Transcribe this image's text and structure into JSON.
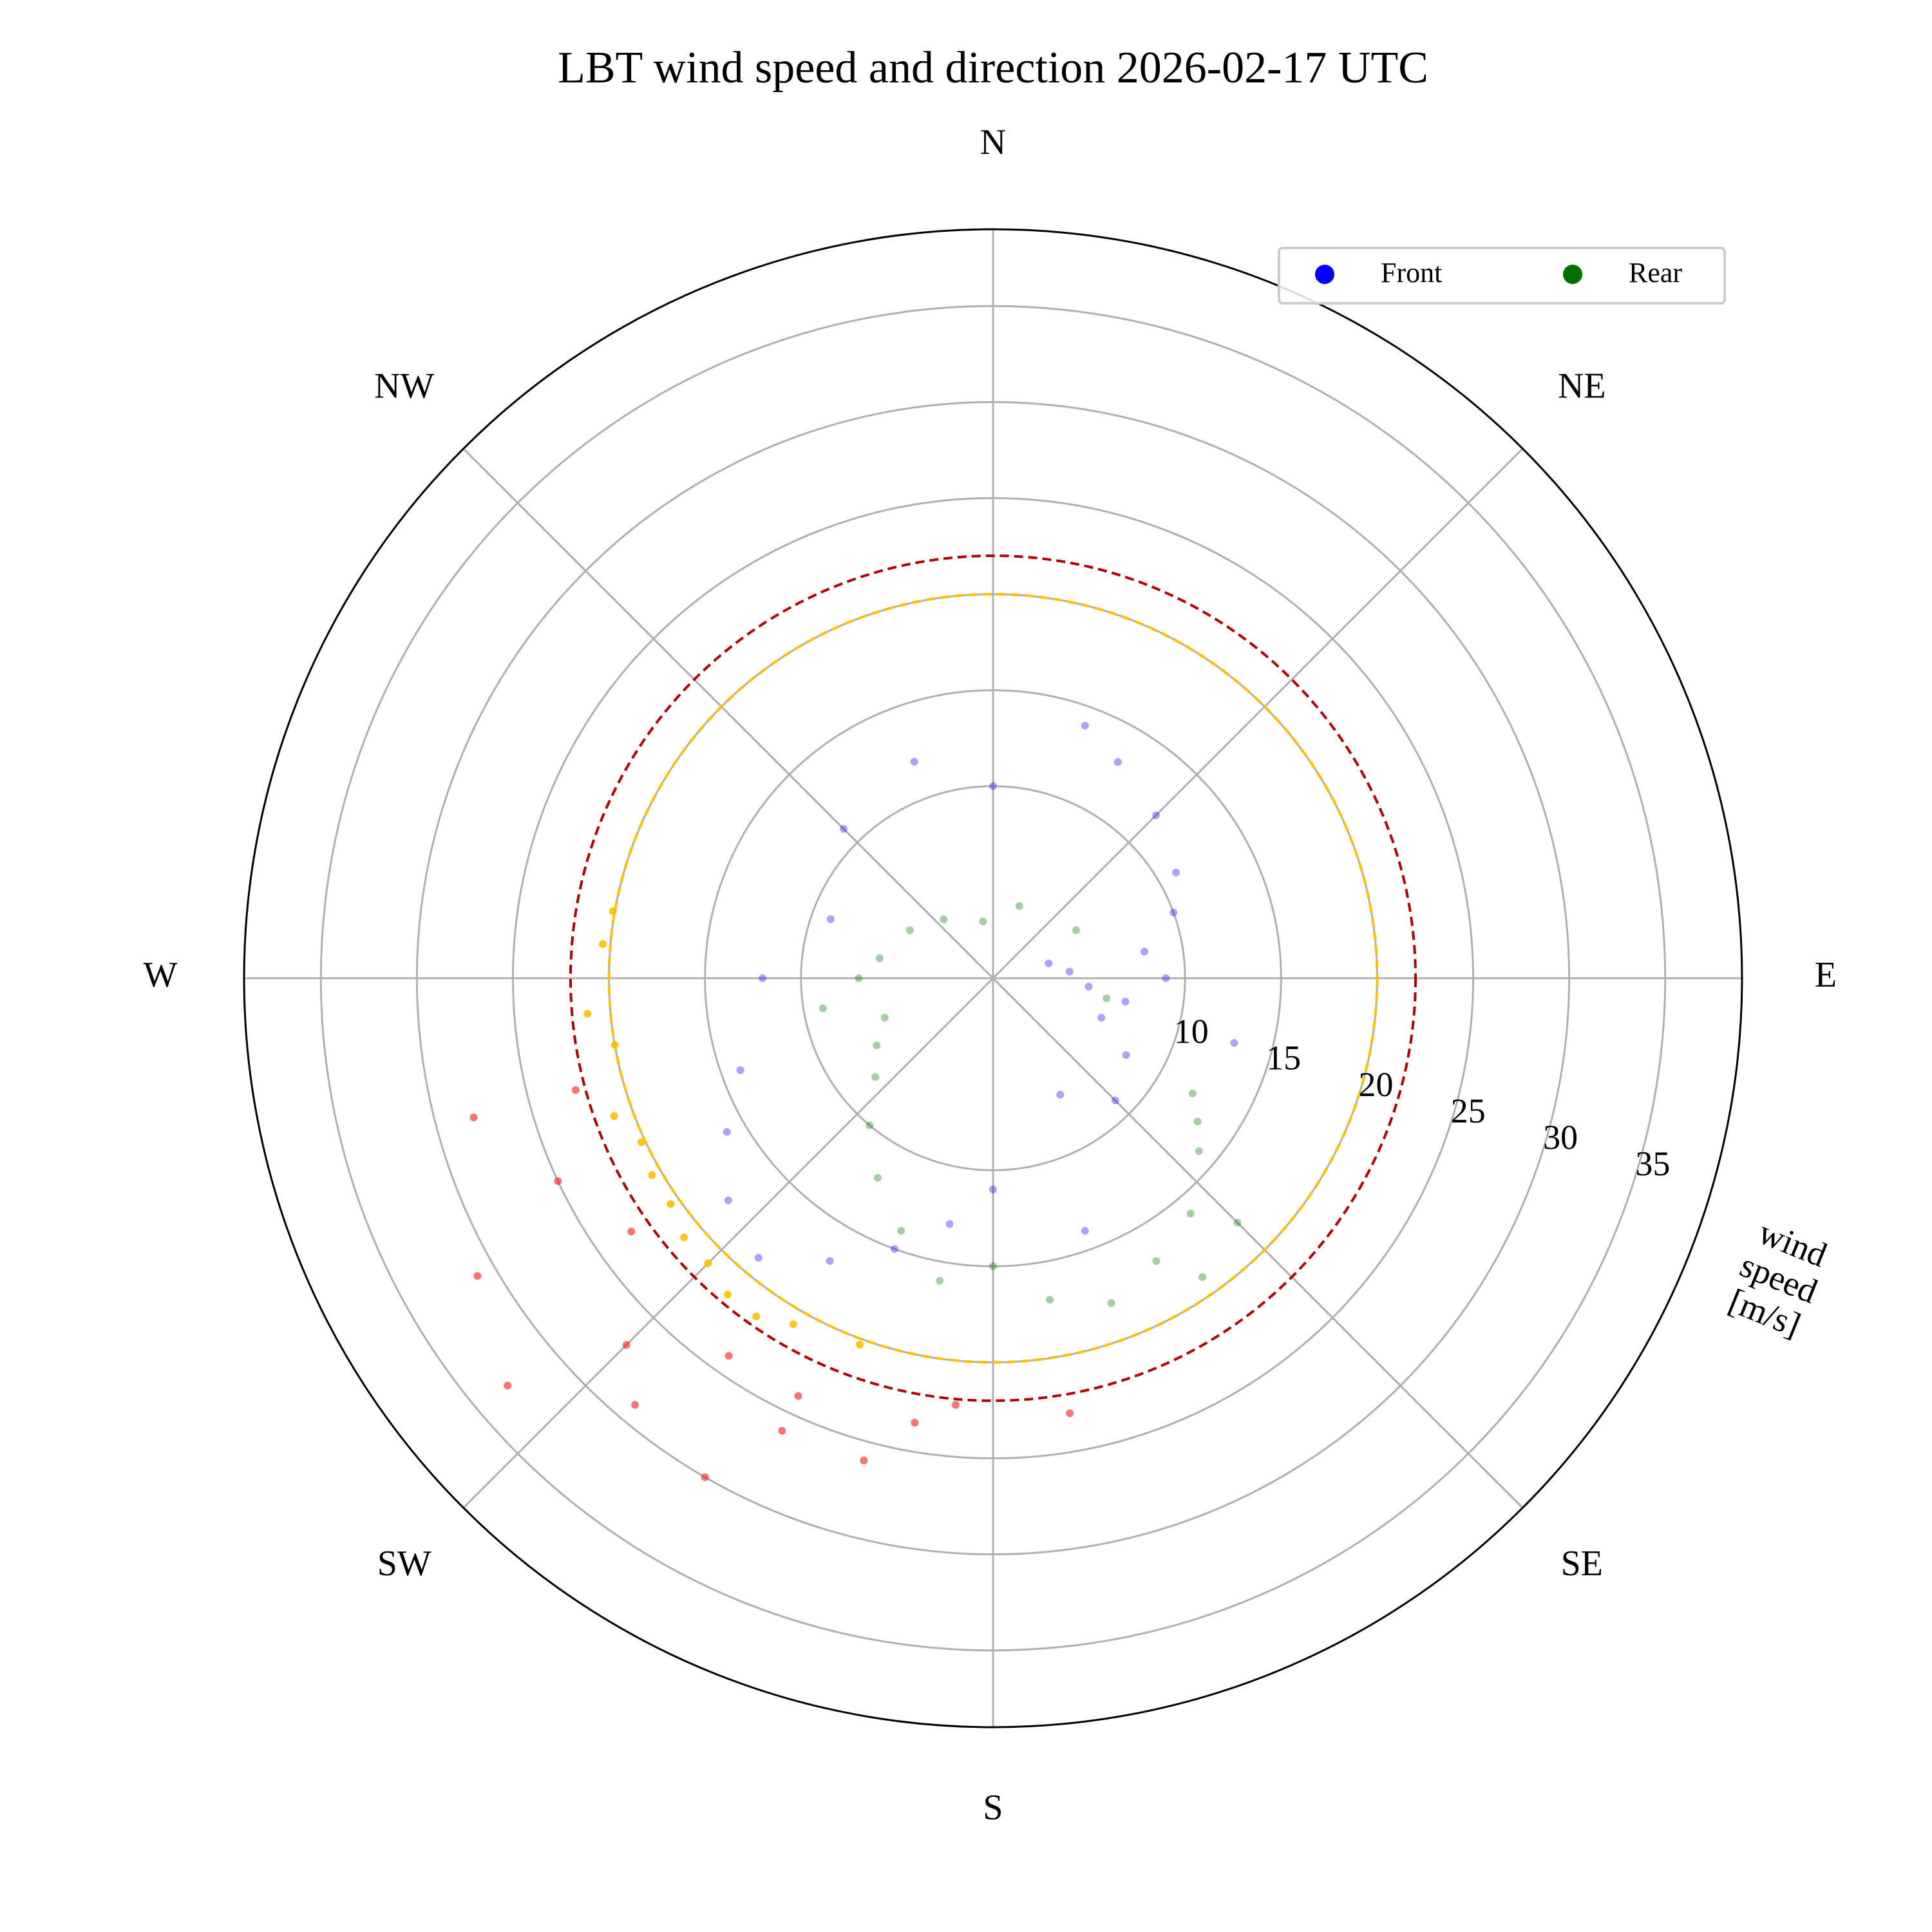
{
  "chart_data": {
    "type": "polar-scatter",
    "title": "LBT wind speed and direction 2026-02-17 UTC",
    "ylabel": [
      "wind",
      "speed",
      "[m/s]"
    ],
    "xlim": [
      0,
      360
    ],
    "xticks": [
      {
        "value": 0,
        "label": "N"
      },
      {
        "value": 45,
        "label": "NE"
      },
      {
        "value": 90,
        "label": "E"
      },
      {
        "value": 135,
        "label": "SE"
      },
      {
        "value": 180,
        "label": "S"
      },
      {
        "value": 225,
        "label": "SW"
      },
      {
        "value": 270,
        "label": "W"
      },
      {
        "value": 315,
        "label": "NW"
      }
    ],
    "ylim": [
      0,
      39
    ],
    "yticks": [
      10,
      15,
      20,
      25,
      30,
      35
    ],
    "grid": true,
    "legend": "upper right",
    "thresholds": [
      {
        "value": 20,
        "color": "#ffc000"
      },
      {
        "value": 22,
        "color": "#b00000",
        "point_color": "#ff0000"
      }
    ],
    "series": [
      {
        "name": "Front",
        "color": "#0000ff",
        "x": [
          80,
          90,
          100,
          70,
          110,
          60,
          120,
          45,
          135,
          30,
          150,
          20,
          0,
          340,
          315,
          290,
          270,
          250,
          240,
          230,
          220,
          210,
          200,
          190,
          180,
          260,
          250,
          240,
          230,
          220,
          210,
          200,
          235,
          245,
          225,
          215,
          255,
          265,
          275,
          280,
          170,
          160,
          190,
          205,
          85,
          95,
          75,
          105
        ],
        "values": [
          8,
          9,
          7,
          10,
          6,
          11,
          8,
          12,
          9,
          13,
          7,
          14,
          10,
          12,
          11,
          9,
          12,
          14,
          16,
          18,
          19,
          17,
          15,
          13,
          11,
          20,
          21,
          20.5,
          21,
          21.5,
          20.8,
          20.3,
          23,
          25,
          27,
          24,
          22.5,
          21.2,
          20.4,
          20.1,
          23,
          14,
          23.5,
          26,
          4,
          5,
          3,
          13
        ]
      },
      {
        "name": "Rear",
        "color": "#007000",
        "x": [
          230,
          220,
          240,
          210,
          250,
          200,
          190,
          180,
          170,
          160,
          150,
          140,
          130,
          120,
          260,
          270,
          280,
          300,
          320,
          350,
          20,
          60,
          100,
          235,
          225,
          245,
          215,
          205,
          195,
          185,
          255,
          240,
          230,
          220,
          210,
          145,
          135,
          125
        ],
        "values": [
          8,
          10,
          7,
          12,
          6,
          14,
          16,
          15,
          17,
          18,
          17,
          16,
          14,
          12,
          9,
          7,
          6,
          5,
          4,
          3,
          4,
          5,
          6,
          20.5,
          21,
          20.2,
          21.5,
          24,
          26,
          22.3,
          28,
          31,
          33,
          29,
          30,
          19,
          18,
          13
        ]
      }
    ]
  }
}
